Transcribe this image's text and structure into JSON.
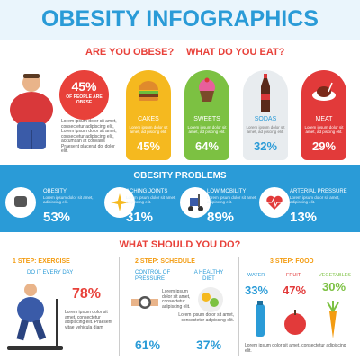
{
  "header": {
    "title": "OBESITY INFOGRAPHICS"
  },
  "intro": {
    "question1": "ARE YOU OBESE?",
    "question2": "WHAT DO YOU EAT?"
  },
  "obese": {
    "value": "45%",
    "caption": "OF PEOPLE ARE OBESE",
    "text": "Lorem ipsum dolor sit amet, consectetur adipiscing elit, Lorem ipsum dolor sit amet, consectetur adipiscing elit, accumsan at convallis Praesent placerat dol dolor elit."
  },
  "foods": [
    {
      "label": "CAKES",
      "text": "Lorem ipsum dolor sit amet, ad piscing elit.",
      "value": "45%"
    },
    {
      "label": "SWEETS",
      "text": "Lorem ipsum dolor sit amet, ad piscing elit.",
      "value": "64%"
    },
    {
      "label": "SODAS",
      "text": "Lorem ipsum dolor sit amet, ad piscing elit.",
      "value": "32%"
    },
    {
      "label": "MEAT",
      "text": "Lorem ipsum dolor sit amet, ad piscing elit.",
      "value": "29%"
    }
  ],
  "problems": {
    "title": "OBESITY PROBLEMS",
    "items": [
      {
        "label": "OBESITY",
        "text": "Lorem ipsum dolor sit amet, adipiscing elit.",
        "value": "53%"
      },
      {
        "label": "ACHING JOINTS",
        "text": "Lorem ipsum dolor sit amet, adipiscing elit.",
        "value": "31%"
      },
      {
        "label": "LOW MOBILITY",
        "text": "Lorem ipsum dolor sit amet, adipiscing elit.",
        "value": "89%"
      },
      {
        "label": "ARTERIAL PRESSURE",
        "text": "Lorem ipsum dolor sit amet, adipiscing elit.",
        "value": "13%"
      }
    ]
  },
  "advice": {
    "title": "WHAT SHOULD YOU DO?",
    "step1": {
      "title": "1 STEP: EXERCISE",
      "subtitle": "DO IT EVERY DAY",
      "value": "78%",
      "text": "Lorem ipsum dolor sit amet, consectetur adipiscing elit. Praesent vitae vehicula diam"
    },
    "step2": {
      "title": "2 STEP: SCHEDULE",
      "item1": "CONTROL OF PRESSURE",
      "item2": "A HEALTHY DIET",
      "text1": "Lorem ipsum dolor sit amet, consectetur adipiscing elit.",
      "text2": "Lorem ipsum dolor sit amet, consectetur adipiscing elit.",
      "value1": "61%",
      "value2": "37%"
    },
    "step3": {
      "title": "3 STEP: FOOD",
      "items": [
        {
          "label": "WATER",
          "value": "33%"
        },
        {
          "label": "FRUIT",
          "value": "47%"
        },
        {
          "label": "VEGETABLES",
          "value": "30%"
        }
      ],
      "text": "Lorem ipsum dolor sit amet, consectetur adipiscing elit."
    }
  }
}
